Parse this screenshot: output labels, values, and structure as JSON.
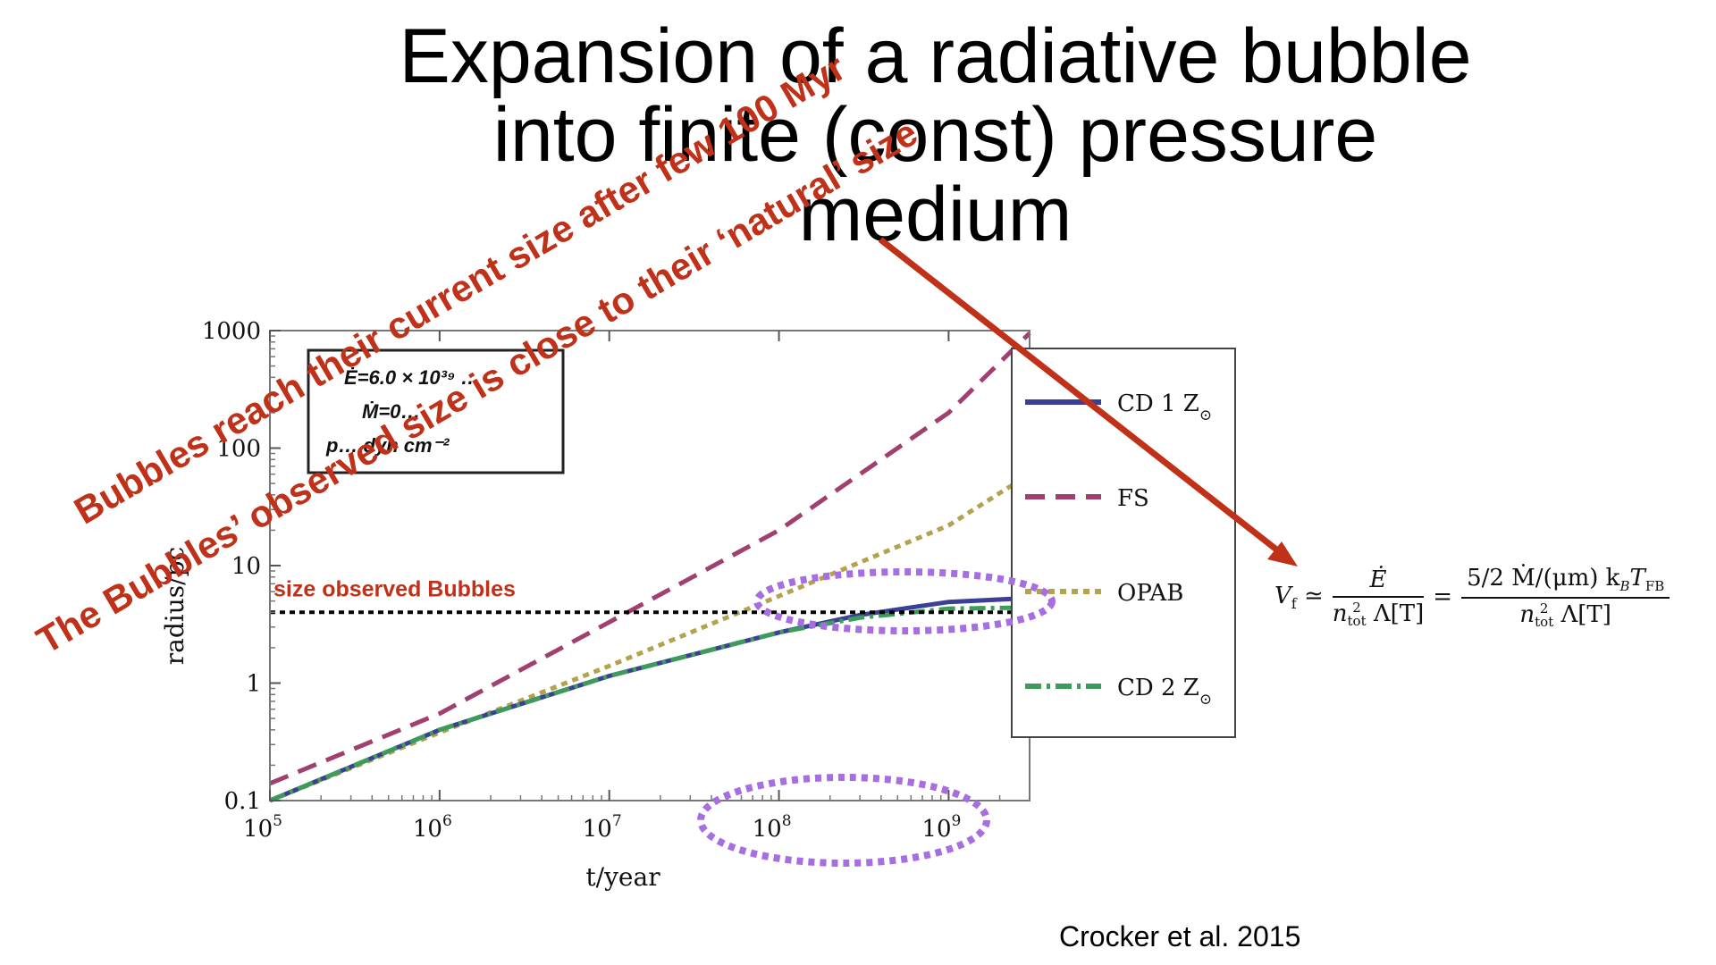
{
  "slide": {
    "title_line1": "Expansion of a radiative bubble",
    "title_line2": "into finite (const) pressure",
    "title_line3": "medium",
    "annotation_1": "Bubbles reach their current size after few 100 Myr",
    "annotation_2": "The Bubbles’ observed size is close to their ‘natural’ size",
    "observed_label": "size observed Bubbles",
    "citation": "Crocker et al. 2015",
    "formula": {
      "lhs": "V",
      "lhs_sub": "f",
      "num1": "Ė",
      "den1": "n",
      "den1_sub": "tot",
      "den1_sup": "2",
      "den1_tail": "Λ[T]",
      "num2": "5/2 Ṁ/(μm) k",
      "num2_sub_b": "B",
      "num2_tail": "T",
      "num2_sub_fb": "FB",
      "den2": "n",
      "den2_sub": "tot",
      "den2_sup": "2",
      "den2_tail": "Λ[T]"
    },
    "colors": {
      "annotation": "#c0311a",
      "highlight_ellipse": "#a66ee0",
      "arrow": "#c0311a"
    }
  },
  "chart_data": {
    "type": "line",
    "xlabel": "t/year",
    "ylabel": "radius/pc",
    "x_scale": "log",
    "y_scale": "log",
    "xlim": [
      100000,
      3000000000
    ],
    "ylim": [
      0.1,
      1000
    ],
    "x_ticks": [
      {
        "v": 100000,
        "base": "10",
        "exp": "5"
      },
      {
        "v": 1000000,
        "base": "10",
        "exp": "6"
      },
      {
        "v": 10000000,
        "base": "10",
        "exp": "7"
      },
      {
        "v": 100000000,
        "base": "10",
        "exp": "8"
      },
      {
        "v": 1000000000,
        "base": "10",
        "exp": "9"
      }
    ],
    "y_ticks": [
      {
        "v": 0.1,
        "label": "0.1"
      },
      {
        "v": 1,
        "label": "1"
      },
      {
        "v": 10,
        "label": "10"
      },
      {
        "v": 100,
        "label": "100"
      },
      {
        "v": 1000,
        "label": "1000"
      }
    ],
    "params_box": [
      "Ė=6.0 × 10³⁹ …",
      "Ṁ=0…",
      "p… dyn cm⁻²"
    ],
    "legend_position": "right",
    "series": [
      {
        "name": "FS",
        "color": "#a0406e",
        "dash": "22,12",
        "width": 5,
        "x": [
          100000,
          1000000,
          10000000,
          100000000,
          1000000000,
          3000000000
        ],
        "y": [
          0.14,
          0.55,
          3.3,
          20,
          200,
          950
        ]
      },
      {
        "name": "OPAB",
        "color": "#b3a24e",
        "dash": "7,6",
        "width": 5,
        "x": [
          100000,
          1000000,
          10000000,
          100000000,
          1000000000,
          3000000000
        ],
        "y": [
          0.1,
          0.38,
          1.4,
          5.5,
          22,
          60
        ]
      },
      {
        "name": "CD 1 Z",
        "name_sub": "⊙",
        "color": "#3b3f96",
        "dash": "",
        "width": 5,
        "x": [
          100000,
          1000000,
          10000000,
          100000000,
          300000000,
          1000000000,
          3000000000
        ],
        "y": [
          0.1,
          0.4,
          1.15,
          2.7,
          3.8,
          4.9,
          5.3
        ]
      },
      {
        "name": "CD 2 Z",
        "name_sub": "⊙",
        "color": "#3f9b5c",
        "dash": "18,6,4,6",
        "width": 5,
        "x": [
          100000,
          1000000,
          10000000,
          100000000,
          300000000,
          1000000000,
          3000000000
        ],
        "y": [
          0.1,
          0.4,
          1.15,
          2.7,
          3.6,
          4.3,
          4.4
        ]
      },
      {
        "name": "size observed Bubbles",
        "color": "#000000",
        "dash": "6,5",
        "width": 4,
        "x": [
          100000,
          3000000000
        ],
        "y": [
          4,
          4
        ]
      }
    ]
  }
}
